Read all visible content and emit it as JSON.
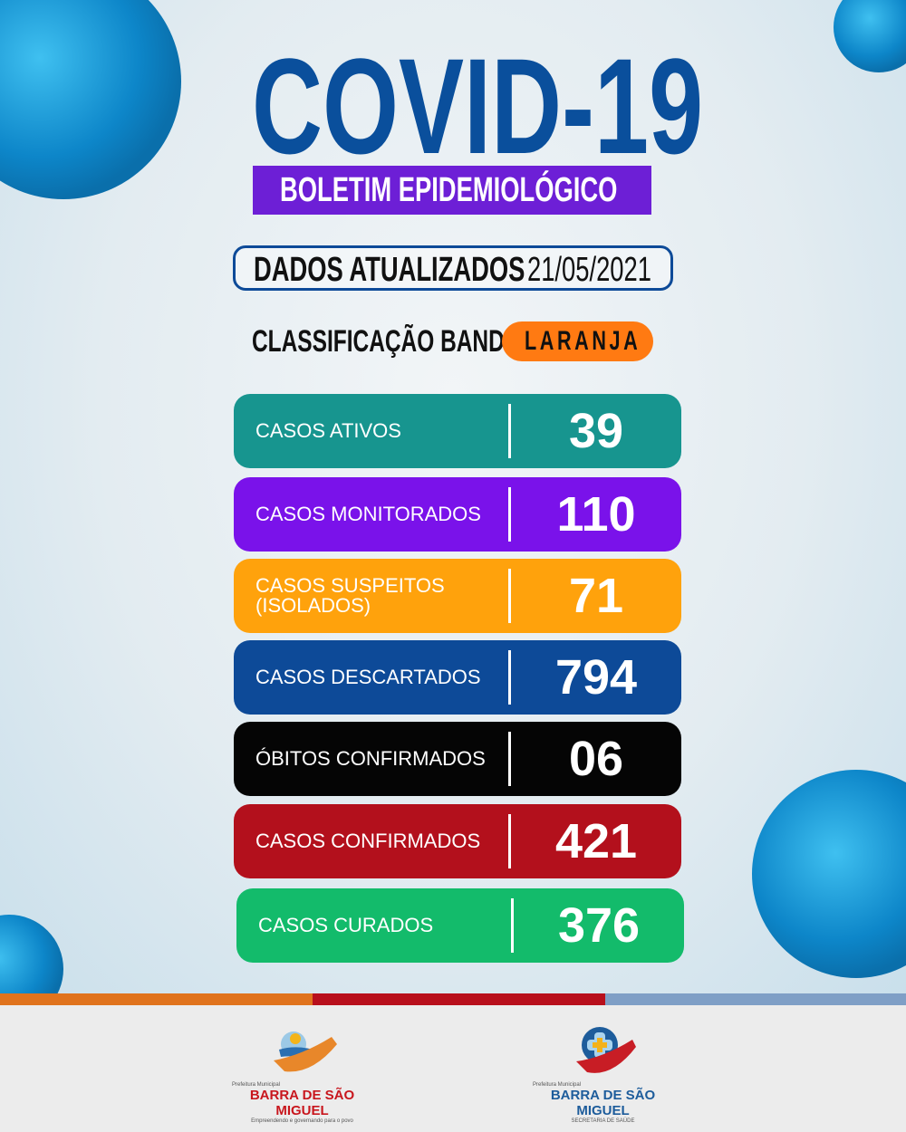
{
  "header": {
    "title": "COVID-19",
    "subtitle": "BOLETIM EPIDEMIOLÓGICO"
  },
  "update": {
    "label": "DADOS ATUALIZADOS",
    "date": "21/05/2021"
  },
  "flag": {
    "label": "CLASSIFICAÇÃO BANDEIRA",
    "value": "LARANJA",
    "color": "#ff7a12"
  },
  "stats": [
    {
      "label": "CASOS ATIVOS",
      "value": "39",
      "color": "#17958f"
    },
    {
      "label": "CASOS MONITORADOS",
      "value": "110",
      "color": "#7a12ea"
    },
    {
      "label": "CASOS SUSPEITOS (ISOLADOS)",
      "value": "71",
      "color": "#ffa20c"
    },
    {
      "label": "CASOS DESCARTADOS",
      "value": "794",
      "color": "#0d4a98"
    },
    {
      "label": "ÓBITOS CONFIRMADOS",
      "value": "06",
      "color": "#050505"
    },
    {
      "label": "CASOS CONFIRMADOS",
      "value": "421",
      "color": "#b3101c"
    },
    {
      "label": "CASOS CURADOS",
      "value": "376",
      "color": "#13bb6b"
    }
  ],
  "footer": {
    "logo1": {
      "top": "Prefeitura Municipal",
      "name": "BARRA DE SÃO MIGUEL",
      "tagline": "Empreendendo e governando para o povo"
    },
    "logo2": {
      "top": "Prefeitura Municipal",
      "name": "BARRA DE SÃO MIGUEL",
      "tagline": "SECRETARIA DE SAÚDE"
    }
  }
}
